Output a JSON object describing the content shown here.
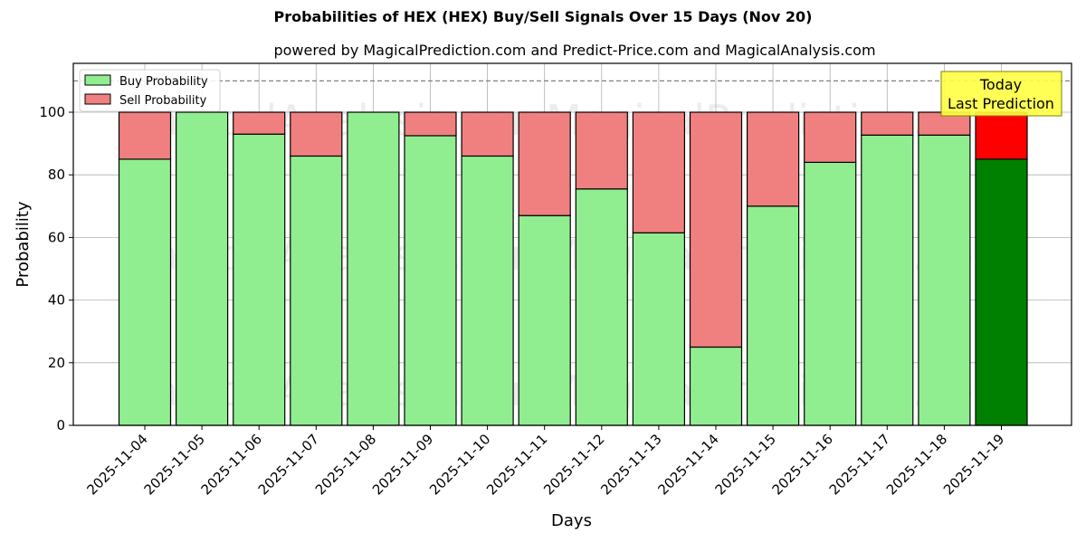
{
  "chart_data": {
    "type": "bar",
    "stacked": true,
    "title": "Probabilities of HEX (HEX) Buy/Sell Signals Over 15 Days (Nov 20)",
    "subtitle": "powered by MagicalPrediction.com and Predict-Price.com and MagicalAnalysis.com",
    "xlabel": "Days",
    "ylabel": "Probability",
    "ylim": [
      0,
      115
    ],
    "yticks": [
      0,
      20,
      40,
      60,
      80,
      100
    ],
    "grid": true,
    "legend_position": "upper left",
    "reference_line": {
      "y": 110,
      "style": "dashed",
      "color": "#808080"
    },
    "categories": [
      "2025-11-04",
      "2025-11-05",
      "2025-11-06",
      "2025-11-07",
      "2025-11-08",
      "2025-11-09",
      "2025-11-10",
      "2025-11-11",
      "2025-11-12",
      "2025-11-13",
      "2025-11-14",
      "2025-11-15",
      "2025-11-16",
      "2025-11-17",
      "2025-11-18",
      "2025-11-19"
    ],
    "series": [
      {
        "name": "Buy Probability",
        "color": "#90ee90",
        "highlight_color": "#008000",
        "values": [
          85,
          100,
          93,
          86,
          100,
          92.5,
          86,
          67,
          75.5,
          61.5,
          25,
          70,
          84,
          92.7,
          92.7,
          85
        ]
      },
      {
        "name": "Sell Probability",
        "color": "#f08080",
        "highlight_color": "#ff0000",
        "values": [
          15,
          0,
          7,
          14,
          0,
          7.5,
          14,
          33,
          24.5,
          38.5,
          75,
          30,
          16,
          7.3,
          7.3,
          15
        ]
      }
    ],
    "highlight_index": 15,
    "annotation": {
      "lines": [
        "Today",
        "Last Prediction"
      ],
      "background": "#ffff44"
    },
    "watermarks": [
      "MagicalAnalysis.com",
      "MagicalPrediction.com"
    ]
  }
}
